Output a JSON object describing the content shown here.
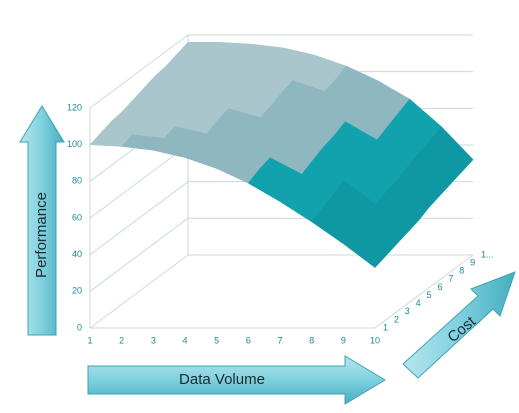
{
  "chart_data": {
    "type": "surface",
    "y_title": "Performance",
    "x_title": "Data Volume",
    "z_title": "Cost",
    "categories": [
      "1",
      "2",
      "3",
      "4",
      "5",
      "6",
      "7",
      "8",
      "9",
      "10"
    ],
    "z_categories": [
      "1",
      "2",
      "3",
      "4",
      "5",
      "6",
      "7",
      "8",
      "9",
      "1..."
    ],
    "series": [
      {
        "values": [
          100,
          99,
          97,
          93,
          87,
          79,
          69,
          58,
          46,
          33
        ]
      },
      {
        "values": [
          102,
          101,
          99,
          95,
          89,
          82,
          72,
          61,
          49,
          35
        ]
      },
      {
        "values": [
          104,
          103,
          101,
          97,
          92,
          84,
          75,
          64,
          51,
          37
        ]
      },
      {
        "values": [
          105,
          105,
          103,
          100,
          94,
          87,
          78,
          67,
          54,
          39
        ]
      },
      {
        "values": [
          107,
          107,
          105,
          102,
          97,
          90,
          81,
          70,
          57,
          41
        ]
      },
      {
        "values": [
          109,
          108,
          107,
          104,
          99,
          92,
          83,
          73,
          59,
          44
        ]
      },
      {
        "values": [
          111,
          110,
          109,
          106,
          102,
          95,
          86,
          76,
          62,
          46
        ]
      },
      {
        "values": [
          112,
          112,
          111,
          109,
          104,
          98,
          89,
          79,
          65,
          48
        ]
      },
      {
        "values": [
          114,
          114,
          113,
          111,
          107,
          100,
          92,
          82,
          67,
          50
        ]
      },
      {
        "values": [
          116,
          116,
          115,
          113,
          109,
          103,
          95,
          85,
          70,
          52
        ]
      }
    ],
    "ylim": [
      0,
      120
    ],
    "yticks": [
      0,
      20,
      40,
      60,
      80,
      100,
      120
    ],
    "grid": true,
    "band_colors": [
      "#0a7f8a",
      "#0b8c97",
      "#0f98a3",
      "#12a2ad",
      "#8fb7c0",
      "#a9c6cd"
    ]
  }
}
